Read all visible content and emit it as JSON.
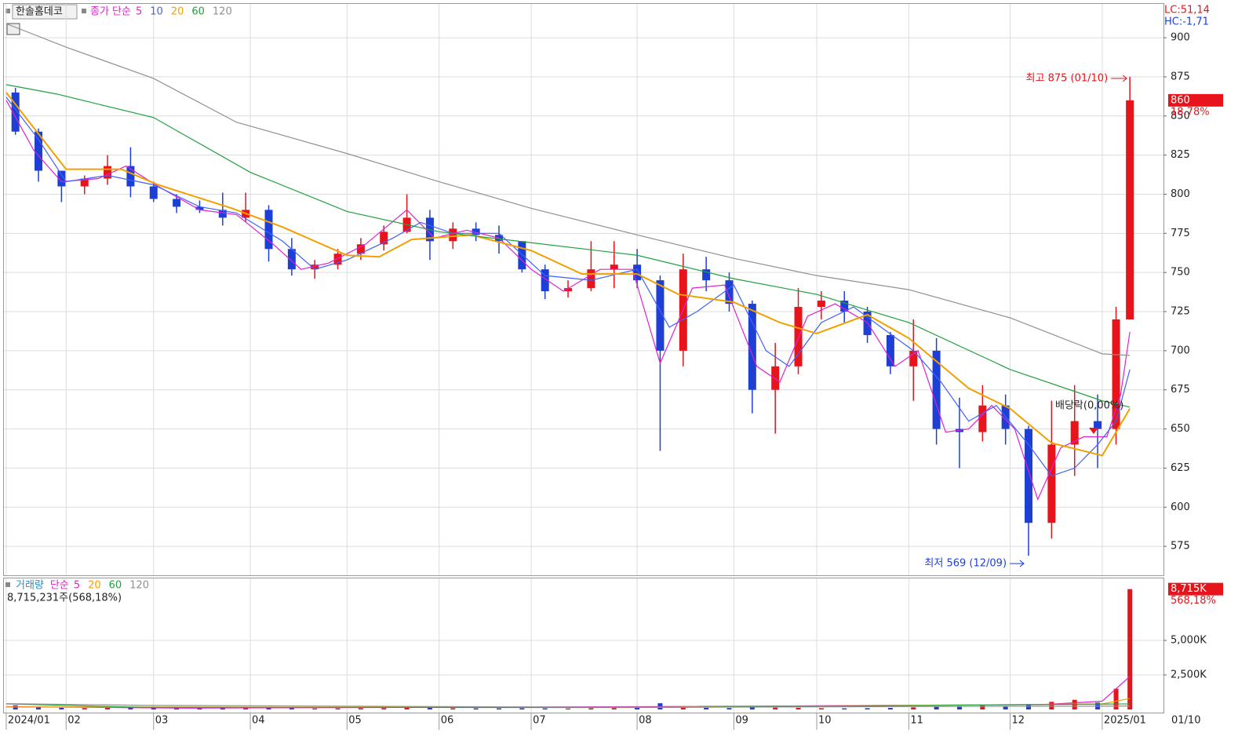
{
  "header": {
    "stock": "한솔홈데코",
    "lc": "LC:51,14",
    "hc": "HC:-1,71",
    "last_date": "01/10"
  },
  "chart_data": [
    {
      "type": "candlestick",
      "ma_label": "종가 단순",
      "x": [
        2,
        7,
        12,
        17,
        22,
        27,
        32,
        37,
        42,
        47,
        52,
        57,
        62,
        67,
        72,
        77,
        82,
        87,
        92,
        97,
        102,
        107,
        112,
        117,
        122,
        127,
        132,
        137,
        142,
        147,
        152,
        157,
        162,
        167,
        172,
        177,
        182,
        187,
        192,
        197,
        202,
        207,
        212,
        217,
        222,
        227,
        232,
        237,
        241,
        244
      ],
      "open": [
        865,
        840,
        815,
        805,
        810,
        818,
        805,
        797,
        792,
        790,
        785,
        790,
        765,
        752,
        755,
        762,
        768,
        776,
        785,
        770,
        778,
        774,
        770,
        752,
        738,
        740,
        752,
        755,
        745,
        700,
        752,
        745,
        730,
        675,
        690,
        728,
        732,
        725,
        710,
        690,
        700,
        650,
        648,
        665,
        650,
        590,
        640,
        655,
        650,
        720
      ],
      "high": [
        868,
        842,
        815,
        812,
        825,
        830,
        808,
        800,
        796,
        801,
        801,
        793,
        772,
        758,
        765,
        772,
        780,
        800,
        790,
        782,
        782,
        780,
        770,
        755,
        745,
        770,
        770,
        765,
        748,
        762,
        760,
        750,
        732,
        705,
        740,
        738,
        738,
        728,
        712,
        720,
        708,
        670,
        678,
        672,
        652,
        668,
        678,
        672,
        728,
        875
      ],
      "low": [
        838,
        808,
        795,
        800,
        806,
        798,
        795,
        788,
        788,
        780,
        782,
        757,
        748,
        746,
        752,
        758,
        764,
        775,
        758,
        765,
        770,
        762,
        750,
        733,
        734,
        738,
        740,
        740,
        636,
        690,
        738,
        725,
        660,
        647,
        685,
        720,
        718,
        705,
        685,
        668,
        640,
        625,
        642,
        640,
        569,
        580,
        620,
        625,
        640,
        720
      ],
      "close": [
        840,
        815,
        805,
        810,
        818,
        805,
        797,
        792,
        790,
        785,
        790,
        765,
        752,
        755,
        762,
        768,
        776,
        785,
        770,
        778,
        774,
        770,
        752,
        738,
        740,
        752,
        755,
        745,
        700,
        752,
        745,
        730,
        675,
        690,
        728,
        732,
        725,
        710,
        690,
        700,
        650,
        648,
        665,
        650,
        590,
        640,
        655,
        650,
        720,
        860
      ],
      "up_color": "#e8141b",
      "down_color": "#1e3fd6",
      "ma": [
        {
          "name": "5",
          "color": "#e020d0",
          "x": [
            0,
            6,
            12,
            20,
            26,
            33,
            42,
            50,
            58,
            64,
            70,
            78,
            87,
            93,
            100,
            107,
            114,
            121,
            129,
            136,
            142,
            149,
            156,
            163,
            168,
            174,
            180,
            187,
            193,
            198,
            204,
            209,
            214,
            219,
            224,
            229,
            234,
            239,
            242,
            244
          ],
          "values": [
            860,
            828,
            808,
            810,
            818,
            805,
            790,
            787,
            768,
            752,
            756,
            768,
            790,
            772,
            777,
            772,
            752,
            738,
            752,
            752,
            692,
            740,
            742,
            690,
            680,
            722,
            730,
            718,
            690,
            700,
            648,
            650,
            665,
            650,
            605,
            638,
            645,
            645,
            672,
            712
          ]
        },
        {
          "name": "10",
          "color": "#4060ff",
          "x": [
            0,
            7,
            13,
            22,
            32,
            42,
            50,
            60,
            67,
            74,
            84,
            90,
            97,
            107,
            117,
            127,
            137,
            144,
            150,
            158,
            165,
            170,
            177,
            184,
            190,
            197,
            203,
            209,
            215,
            222,
            227,
            232,
            237,
            241,
            244
          ],
          "values": [
            862,
            835,
            808,
            812,
            806,
            792,
            788,
            770,
            752,
            758,
            772,
            782,
            775,
            775,
            748,
            745,
            752,
            715,
            725,
            742,
            700,
            690,
            718,
            728,
            715,
            700,
            680,
            655,
            665,
            640,
            620,
            625,
            640,
            655,
            688
          ]
        },
        {
          "name": "20",
          "color": "#f0a000",
          "x": [
            0,
            13,
            25,
            33,
            49,
            60,
            74,
            81,
            88,
            101,
            114,
            125,
            137,
            146,
            158,
            168,
            176,
            187,
            196,
            209,
            218,
            227,
            238,
            244
          ],
          "values": [
            865,
            816,
            816,
            806,
            791,
            779,
            761,
            760,
            771,
            774,
            764,
            749,
            749,
            736,
            731,
            718,
            711,
            723,
            708,
            676,
            663,
            641,
            633,
            663
          ]
        },
        {
          "name": "60",
          "color": "#22a040",
          "x": [
            0,
            11,
            32,
            53,
            74,
            94,
            114,
            137,
            158,
            176,
            187,
            196,
            218,
            238,
            244
          ],
          "values": [
            870,
            864,
            849,
            814,
            789,
            776,
            769,
            761,
            746,
            736,
            726,
            718,
            688,
            668,
            664
          ]
        },
        {
          "name": "120",
          "color": "#909090",
          "x": [
            0,
            13,
            32,
            50,
            74,
            94,
            114,
            137,
            158,
            176,
            196,
            218,
            238,
            244
          ],
          "values": [
            909,
            894,
            874,
            846,
            826,
            808,
            791,
            774,
            759,
            748,
            739,
            721,
            698,
            697
          ]
        }
      ],
      "xlim": [
        -0.5,
        251.3
      ],
      "xticks": [
        {
          "value": 0,
          "label": "2024/01"
        },
        {
          "value": 13,
          "label": "02"
        },
        {
          "value": 32,
          "label": "03"
        },
        {
          "value": 53,
          "label": "04"
        },
        {
          "value": 74,
          "label": "05"
        },
        {
          "value": 94,
          "label": "06"
        },
        {
          "value": 114,
          "label": "07"
        },
        {
          "value": 137,
          "label": "08"
        },
        {
          "value": 158,
          "label": "09"
        },
        {
          "value": 176,
          "label": "10"
        },
        {
          "value": 196,
          "label": "11"
        },
        {
          "value": 218,
          "label": "12"
        },
        {
          "value": 238,
          "label": "2025/01"
        }
      ],
      "ylim": [
        556.5,
        921.6
      ],
      "yticks": [
        575,
        600,
        625,
        650,
        675,
        700,
        725,
        750,
        775,
        800,
        825,
        850,
        875,
        900
      ],
      "grid": true,
      "high_label": "최고 875 (01/10)",
      "low_label": "최저 569 (12/09)",
      "dividend_label": "배당락(0,00%)",
      "price_marker": {
        "value": 860,
        "change": "18,78%"
      }
    },
    {
      "type": "bar",
      "name": "거래량",
      "ma_label": "단순",
      "values": [
        300000,
        150000,
        120000,
        100000,
        200000,
        180000,
        100000,
        80000,
        80000,
        90000,
        120000,
        110000,
        90000,
        70000,
        80000,
        90000,
        100000,
        140000,
        110000,
        90000,
        80000,
        80000,
        90000,
        80000,
        70000,
        90000,
        100000,
        120000,
        450000,
        200000,
        120000,
        100000,
        150000,
        130000,
        120000,
        90000,
        80000,
        90000,
        110000,
        150000,
        200000,
        250000,
        300000,
        250000,
        400000,
        550000,
        700000,
        500000,
        1500000,
        8715231
      ],
      "ma": [
        {
          "name": "5",
          "color": "#e020d0",
          "x": [
            0,
            40,
            137,
            225,
            238,
            244
          ],
          "values": [
            200000,
            100000,
            200000,
            350000,
            600000,
            2400000
          ]
        },
        {
          "name": "20",
          "color": "#f0a000",
          "x": [
            0,
            137,
            238,
            244
          ],
          "values": [
            180000,
            150000,
            400000,
            800000
          ]
        },
        {
          "name": "60",
          "color": "#22a040",
          "x": [
            0,
            30,
            137,
            244
          ],
          "values": [
            400000,
            150000,
            140000,
            400000
          ]
        },
        {
          "name": "120",
          "color": "#909090",
          "x": [
            0,
            30,
            137,
            244
          ],
          "values": [
            420000,
            300000,
            150000,
            250000
          ]
        }
      ],
      "ylim": [
        0,
        9490000
      ],
      "yticks": [
        {
          "value": 2500000,
          "label": "2,500K"
        },
        {
          "value": 5000000,
          "label": "5,000K"
        }
      ],
      "info": "8,715,231주(568,18%)",
      "marker": {
        "value": 8715000,
        "label": "8,715K",
        "change": "568,18%"
      }
    }
  ]
}
